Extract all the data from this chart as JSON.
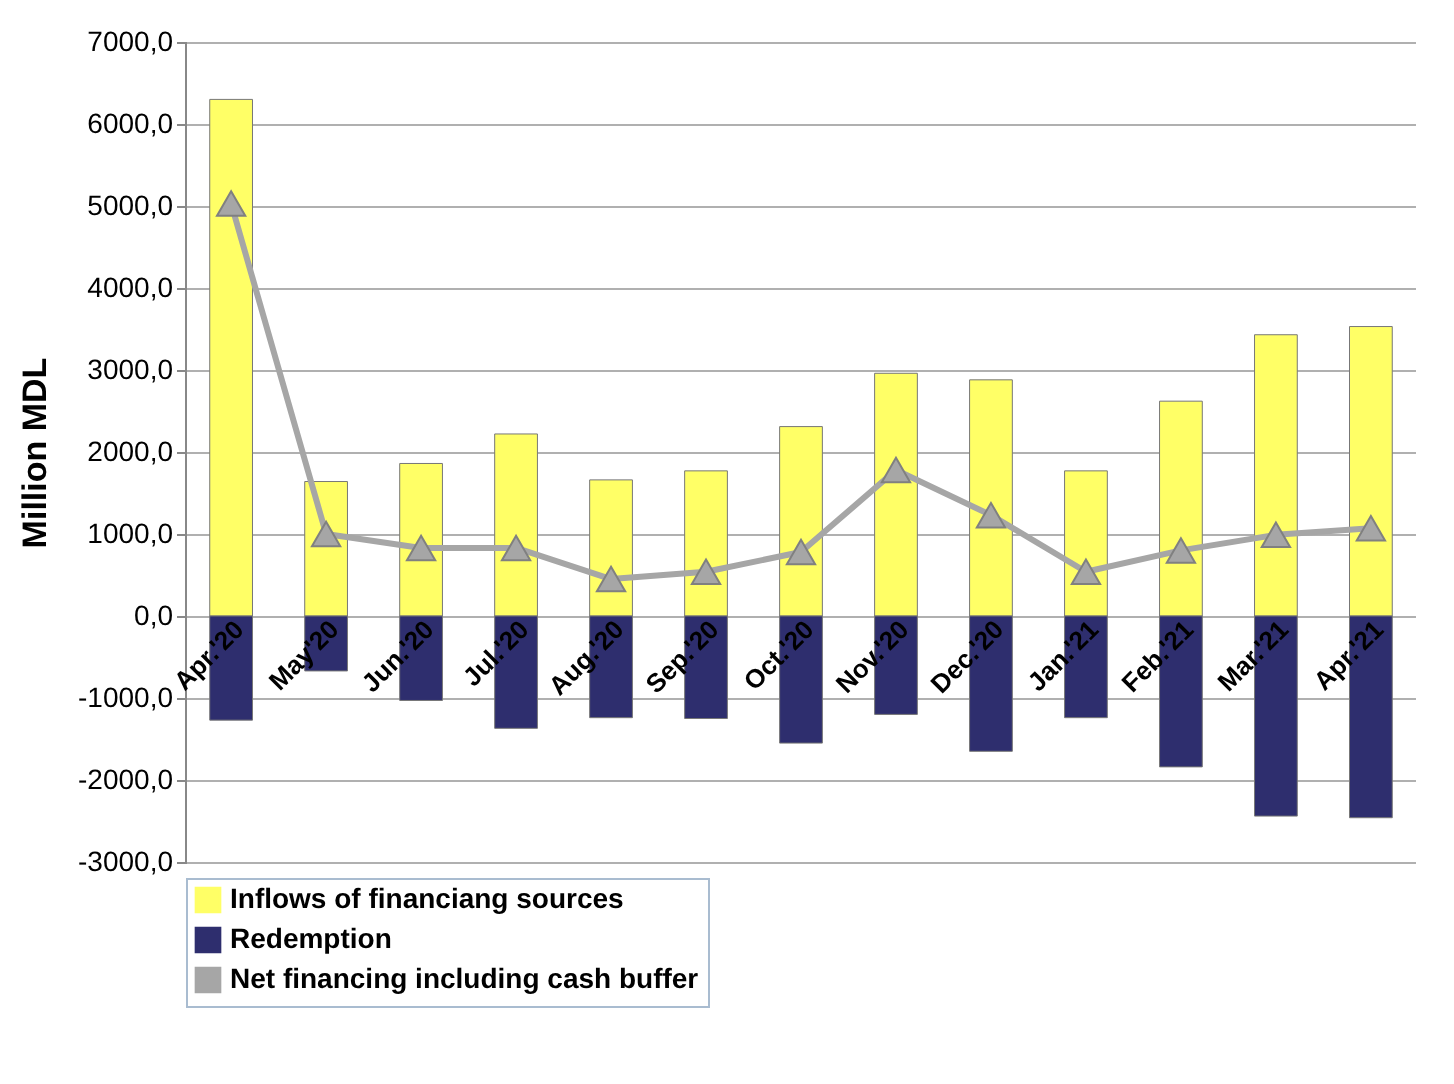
{
  "chart_data": {
    "type": "bar",
    "ylabel": "Million MDL",
    "stacked": true,
    "categories": [
      "Apr.'20",
      "May'20",
      "Jun.'20",
      "Jul.'20",
      "Aug.'20",
      "Sep.'20",
      "Oct.'20",
      "Nov.'20",
      "Dec.'20",
      "Jan.'21",
      "Feb.'21",
      "Mar.'21",
      "Apr.'21"
    ],
    "series": [
      {
        "name": "Inflows of financiang sources",
        "color": "#ffff66",
        "values": [
          6300,
          1640,
          1860,
          2220,
          1660,
          1770,
          2310,
          2960,
          2880,
          1770,
          2620,
          3430,
          3530
        ]
      },
      {
        "name": "Redemption",
        "color": "#2e2e6e",
        "values": [
          -1270,
          -670,
          -1030,
          -1370,
          -1240,
          -1250,
          -1550,
          -1200,
          -1650,
          -1240,
          -1840,
          -2440,
          -2460
        ]
      },
      {
        "name": "Net financing including cash buffer",
        "type": "line",
        "color": "#a6a6a6",
        "marker": "triangle",
        "values": [
          5030,
          1000,
          830,
          830,
          450,
          540,
          780,
          1780,
          1230,
          540,
          800,
          990,
          1070
        ]
      }
    ],
    "ylim": [
      -3000,
      7000
    ],
    "yticks": [
      {
        "value": -3000,
        "label": "-3000,0"
      },
      {
        "value": -2000,
        "label": "-2000,0"
      },
      {
        "value": -1000,
        "label": "-1000,0"
      },
      {
        "value": 0,
        "label": "0,0"
      },
      {
        "value": 1000,
        "label": "1000,0"
      },
      {
        "value": 2000,
        "label": "2000,0"
      },
      {
        "value": 3000,
        "label": "3000,0"
      },
      {
        "value": 4000,
        "label": "4000,0"
      },
      {
        "value": 5000,
        "label": "5000,0"
      },
      {
        "value": 6000,
        "label": "6000,0"
      },
      {
        "value": 7000,
        "label": "7000,0"
      }
    ],
    "grid": "y",
    "legend": "bottom"
  }
}
